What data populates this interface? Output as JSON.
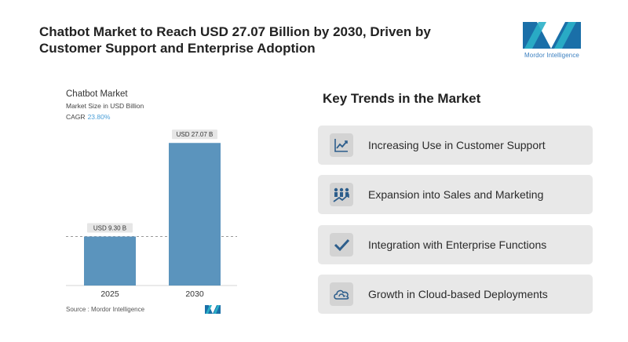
{
  "headline": "Chatbot Market to Reach USD 27.07 Billion by 2030, Driven by Customer Support and Enterprise Adoption",
  "logo": {
    "text": "Mordor Intelligence",
    "colors": [
      "#1a6fa8",
      "#2bb0c8"
    ]
  },
  "chart_data": {
    "type": "bar",
    "title": "Chatbot Market",
    "subtitle": "Market Size in USD Billion",
    "cagr_label": "CAGR",
    "cagr_value": "23.80%",
    "categories": [
      "2025",
      "2030"
    ],
    "values": [
      9.3,
      27.07
    ],
    "data_labels": [
      "USD 9.30 B",
      "USD 27.07 B"
    ],
    "ylim": [
      0,
      28
    ],
    "reference_line": "dashed line at 2025 value",
    "bar_color": "#5b94bd",
    "source": "Source : Mordor Intelligence"
  },
  "trends": {
    "title": "Key Trends in the Market",
    "items": [
      {
        "label": "Increasing Use in Customer Support",
        "icon": "line-chart-icon"
      },
      {
        "label": "Expansion into Sales and Marketing",
        "icon": "growth-people-icon"
      },
      {
        "label": "Integration with Enterprise Functions",
        "icon": "checkmark-icon"
      },
      {
        "label": "Growth in Cloud-based Deployments",
        "icon": "cloud-icon"
      }
    ]
  }
}
